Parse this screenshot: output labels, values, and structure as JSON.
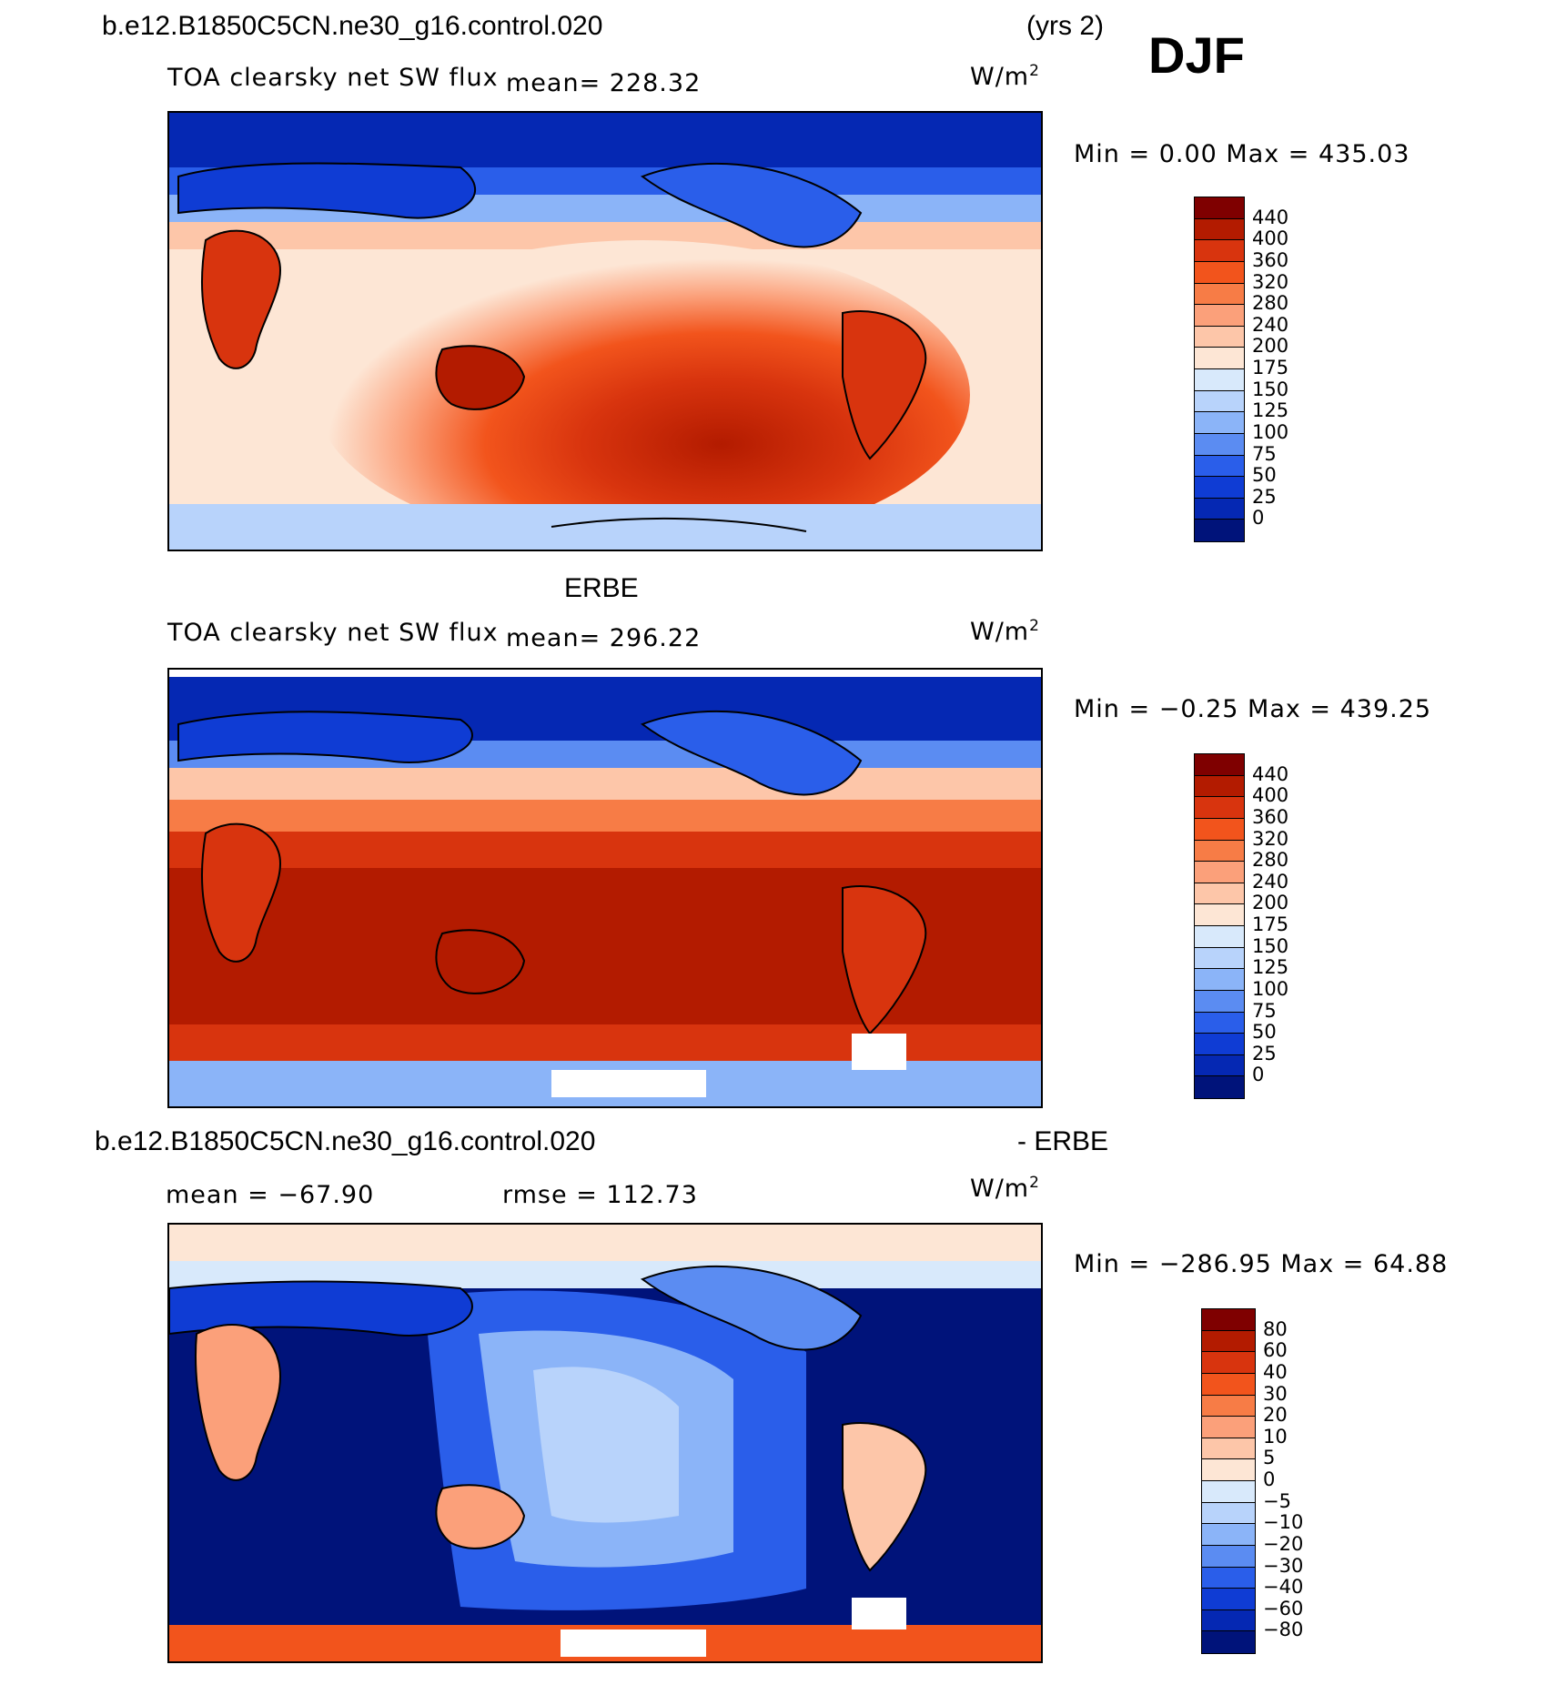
{
  "header": {
    "case_name": "b.e12.B1850C5CN.ne30_g16.control.020",
    "years": "(yrs 2)",
    "season": "DJF"
  },
  "panels": [
    {
      "id": "model",
      "title": "",
      "variable": "TOA clearsky net SW flux",
      "mean_label": "mean= 228.32",
      "units": "W/m",
      "units_sup": "2",
      "minmax": "Min =    0.00 Max = 435.03",
      "colorbar_labels": [
        "440",
        "400",
        "360",
        "320",
        "280",
        "240",
        "200",
        "175",
        "150",
        "125",
        "100",
        "75",
        "50",
        "25",
        "0"
      ]
    },
    {
      "id": "obs",
      "title": "ERBE",
      "variable": "TOA clearsky net SW flux",
      "mean_label": "mean= 296.22",
      "units": "W/m",
      "units_sup": "2",
      "minmax": "Min =  −0.25 Max = 439.25",
      "colorbar_labels": [
        "440",
        "400",
        "360",
        "320",
        "280",
        "240",
        "200",
        "175",
        "150",
        "125",
        "100",
        "75",
        "50",
        "25",
        "0"
      ]
    },
    {
      "id": "diff",
      "title": "b.e12.B1850C5CN.ne30_g16.control.020",
      "title_suffix": "- ERBE",
      "mean_label": "mean = −67.90",
      "rmse_label": "rmse = 112.73",
      "units": "W/m",
      "units_sup": "2",
      "minmax": "Min = −286.95 Max =   64.88",
      "colorbar_labels": [
        "80",
        "60",
        "40",
        "30",
        "20",
        "10",
        "5",
        "0",
        "−5",
        "−10",
        "−20",
        "−30",
        "−40",
        "−60",
        "−80"
      ]
    }
  ],
  "colors": {
    "colorbar": [
      "#7f0000",
      "#b31b00",
      "#d8340e",
      "#f2541c",
      "#f77c46",
      "#fba07a",
      "#fdc6a9",
      "#fde6d5",
      "#d8e9fb",
      "#b8d3fb",
      "#8bb4f8",
      "#5b8cf2",
      "#2a5eea",
      "#0f3cd4",
      "#0528b3",
      "#00137a"
    ],
    "ocean_frame": "#ffffff"
  }
}
